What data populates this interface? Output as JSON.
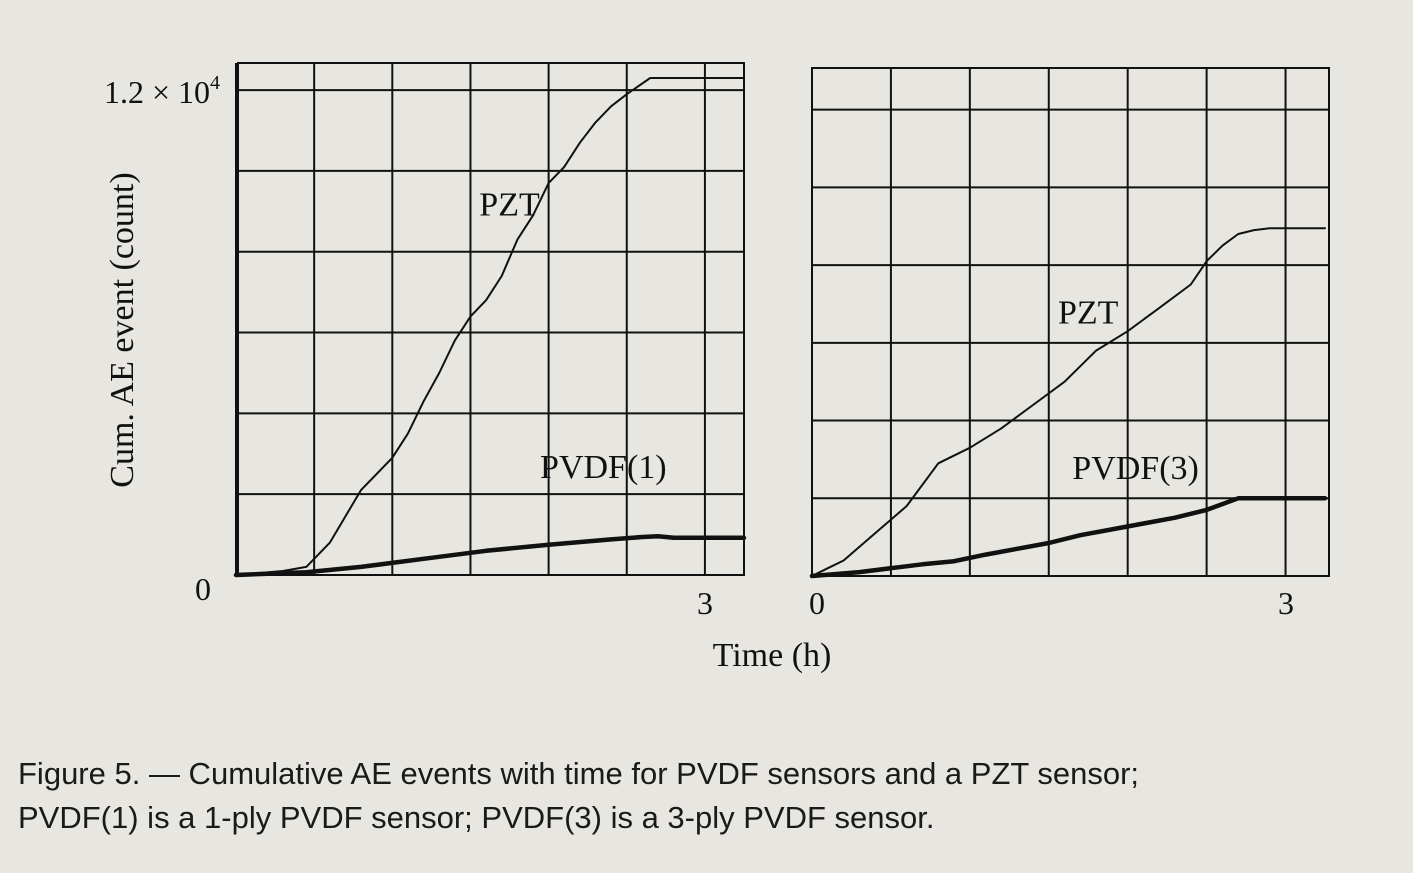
{
  "chart_data": [
    {
      "type": "line",
      "panel": "left",
      "ylabel": "Cum. AE event (count)",
      "ytick_top_label": "1.2 × 10",
      "ytick_top_exp": "4",
      "ytick_zero_label": "0",
      "xtick_end_label": "3",
      "xlim": [
        0,
        3.25
      ],
      "ylim": [
        0,
        12300
      ],
      "x_gridlines": [
        0,
        0.5,
        1,
        1.5,
        2,
        2.5,
        3
      ],
      "y_gridlines": [
        0,
        2000,
        4000,
        6000,
        8000,
        10000,
        12000
      ],
      "series": [
        {
          "name": "PZT",
          "label": "PZT",
          "label_at": [
            1.75,
            8900
          ],
          "weight": "thin",
          "x": [
            0,
            0.3,
            0.45,
            0.6,
            0.8,
            1.0,
            1.1,
            1.2,
            1.3,
            1.4,
            1.5,
            1.6,
            1.7,
            1.8,
            1.9,
            2.0,
            2.1,
            2.2,
            2.3,
            2.4,
            2.5,
            2.65,
            2.7,
            3.25
          ],
          "y": [
            0,
            100,
            200,
            800,
            2100,
            2900,
            3500,
            4300,
            5000,
            5800,
            6400,
            6800,
            7400,
            8300,
            8900,
            9700,
            10100,
            10700,
            11200,
            11600,
            11900,
            12300,
            12300,
            12300
          ]
        },
        {
          "name": "PVDF(1)",
          "label": "PVDF(1)",
          "label_at": [
            2.35,
            2400
          ],
          "weight": "thick",
          "x": [
            0,
            0.2,
            0.45,
            0.8,
            1.2,
            1.6,
            2.0,
            2.4,
            2.6,
            2.7,
            2.8,
            3.0,
            3.25
          ],
          "y": [
            0,
            30,
            70,
            200,
            400,
            600,
            750,
            880,
            940,
            960,
            920,
            920,
            920
          ]
        }
      ]
    },
    {
      "type": "line",
      "panel": "right",
      "xtick_start_label": "0",
      "xtick_end_label": "3",
      "xlim": [
        0,
        3.25
      ],
      "ylim": [
        0,
        12300
      ],
      "x_gridlines": [
        0,
        0.5,
        1,
        1.5,
        2,
        2.5,
        3
      ],
      "y_gridlines": [
        0,
        2000,
        4000,
        6000,
        8000,
        10000,
        12000
      ],
      "series": [
        {
          "name": "PZT",
          "label": "PZT",
          "label_at": [
            1.75,
            6500
          ],
          "weight": "thin",
          "x": [
            0,
            0.1,
            0.2,
            0.4,
            0.6,
            0.8,
            1.0,
            1.2,
            1.4,
            1.6,
            1.8,
            2.0,
            2.2,
            2.4,
            2.5,
            2.6,
            2.7,
            2.8,
            2.9,
            3.25
          ],
          "y": [
            0,
            200,
            400,
            1100,
            1800,
            2900,
            3300,
            3800,
            4400,
            5000,
            5800,
            6300,
            6900,
            7500,
            8100,
            8500,
            8800,
            8900,
            8950,
            8950
          ]
        },
        {
          "name": "PVDF(3)",
          "label": "PVDF(3)",
          "label_at": [
            2.05,
            2500
          ],
          "weight": "thick",
          "x": [
            0,
            0.3,
            0.5,
            0.7,
            0.9,
            1.1,
            1.3,
            1.5,
            1.7,
            1.9,
            2.1,
            2.3,
            2.5,
            2.7,
            2.8,
            3.25
          ],
          "y": [
            0,
            100,
            200,
            300,
            380,
            550,
            700,
            850,
            1050,
            1200,
            1350,
            1500,
            1700,
            2000,
            2000,
            2000
          ]
        }
      ]
    }
  ],
  "xlabel": "Time (h)",
  "caption": {
    "line1": "Figure 5. — Cumulative AE events with time for PVDF sensors and a PZT sensor;",
    "line2": "PVDF(1) is a 1-ply PVDF sensor; PVDF(3) is a 3-ply PVDF sensor."
  }
}
